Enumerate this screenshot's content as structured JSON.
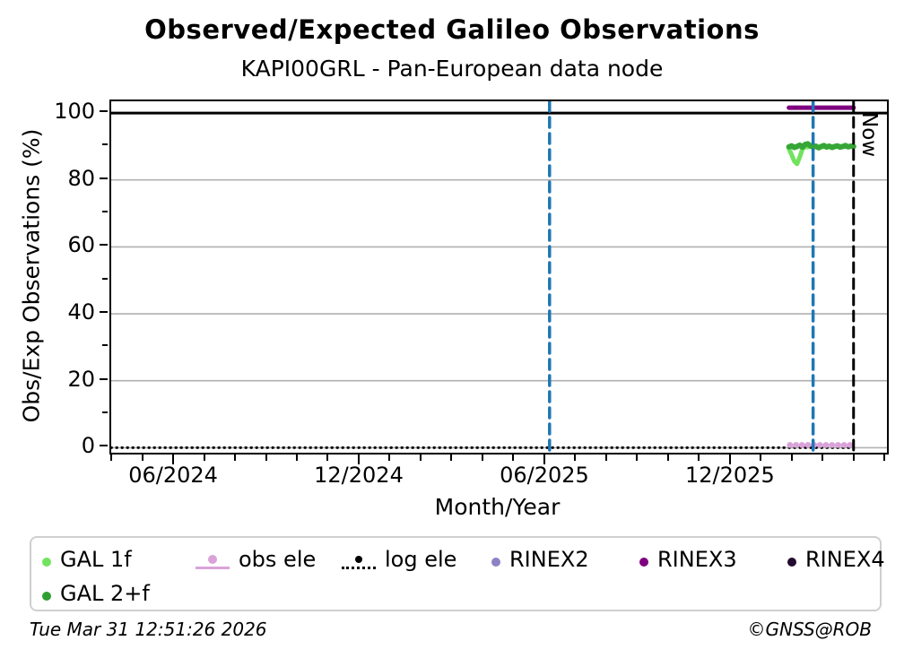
{
  "header": {
    "title": "Observed/Expected Galileo Observations",
    "subtitle": "KAPI00GRL - Pan-European data node"
  },
  "chart_data": {
    "type": "line",
    "title": "Observed/Expected Galileo Observations",
    "subtitle": "KAPI00GRL - Pan-European data node",
    "xlabel": "Month/Year",
    "ylabel": "Obs/Exp Observations (%)",
    "x_tick_labels": [
      "06/2024",
      "12/2024",
      "06/2025",
      "12/2025"
    ],
    "x_tick_positions": [
      2024.4167,
      2024.9167,
      2025.4167,
      2025.9167
    ],
    "xlim": [
      2024.245,
      2026.335
    ],
    "y_ticks": [
      0,
      20,
      40,
      60,
      80,
      100
    ],
    "y_minor_ticks": [
      10,
      30,
      50,
      70,
      90
    ],
    "ylim": [
      -1.5,
      103.5
    ],
    "grid_y": [
      0,
      20,
      40,
      60,
      80
    ],
    "grid_color": "#b0b0b0",
    "ref_lines": [
      {
        "y": 100,
        "color": "#000000",
        "width": 3
      }
    ],
    "event_lines": [
      {
        "x": 2025.426,
        "color": "#1f77b4",
        "width": 3.5,
        "dash": "11 7",
        "label": ""
      },
      {
        "x": 2026.136,
        "color": "#1f77b4",
        "width": 3.5,
        "dash": "11 7",
        "label": ""
      },
      {
        "x": 2026.245,
        "color": "#000000",
        "width": 3,
        "dash": "11 7",
        "label": "Now"
      }
    ],
    "series": [
      {
        "name": "log ele",
        "color": "#000000",
        "width": 3,
        "dash": "0.4 5.6",
        "points": [
          [
            2024.245,
            0.0
          ],
          [
            2026.245,
            0.0
          ]
        ]
      },
      {
        "name": "obs ele",
        "color": "#d9a3d9",
        "width": 6.5,
        "dash": "0.5 6.2",
        "points": [
          [
            2026.073,
            0.8
          ],
          [
            2026.245,
            0.8
          ]
        ]
      },
      {
        "name": "GAL 1f",
        "color": "#72e35f",
        "width": 5,
        "x_start": 2026.071,
        "x_end": 2026.245,
        "values": [
          89.3,
          87.5,
          85.6,
          84.8,
          86.8,
          89.2,
          89.9,
          89.8,
          90.0,
          89.9,
          90.1,
          89.8,
          90.0,
          89.9,
          90.0,
          90.1,
          89.9,
          90.0,
          90.0,
          89.9,
          90.1,
          90.0,
          89.9,
          90.0,
          90.0
        ]
      },
      {
        "name": "GAL 2+f",
        "color": "#36a636",
        "width": 6,
        "x_start": 2026.071,
        "x_end": 2026.245,
        "values": [
          89.9,
          90.2,
          89.7,
          90.0,
          90.4,
          89.8,
          90.6,
          90.8,
          90.2,
          89.8,
          90.1,
          89.6,
          90.0,
          90.3,
          89.8,
          90.1,
          89.7,
          90.0,
          90.2,
          89.8,
          90.0,
          90.3,
          89.9,
          90.1,
          90.0
        ]
      },
      {
        "name": "RINEX3",
        "color": "#800080",
        "width": 5,
        "dash": "",
        "points": [
          [
            2026.071,
            101.6
          ],
          [
            2026.245,
            101.6
          ]
        ]
      }
    ]
  },
  "legend": {
    "items": [
      {
        "label": "GAL 1f",
        "marker": "dot",
        "color": "#72e35f"
      },
      {
        "label": "obs ele",
        "marker": "line-dot",
        "color": "#d9a3d9"
      },
      {
        "label": "log ele",
        "marker": "dotted-line-dot",
        "color": "#000000"
      },
      {
        "label": "RINEX2",
        "marker": "dot",
        "color": "#8d82c6"
      },
      {
        "label": "RINEX3",
        "marker": "dot",
        "color": "#800080"
      },
      {
        "label": "RINEX4",
        "marker": "dot",
        "color": "#240a2e"
      },
      {
        "label": "GAL 2+f",
        "marker": "dot",
        "color": "#2f9e33"
      }
    ]
  },
  "footer": {
    "timestamp": "Tue Mar 31 12:51:26 2026",
    "credit": "©GNSS@ROB"
  }
}
